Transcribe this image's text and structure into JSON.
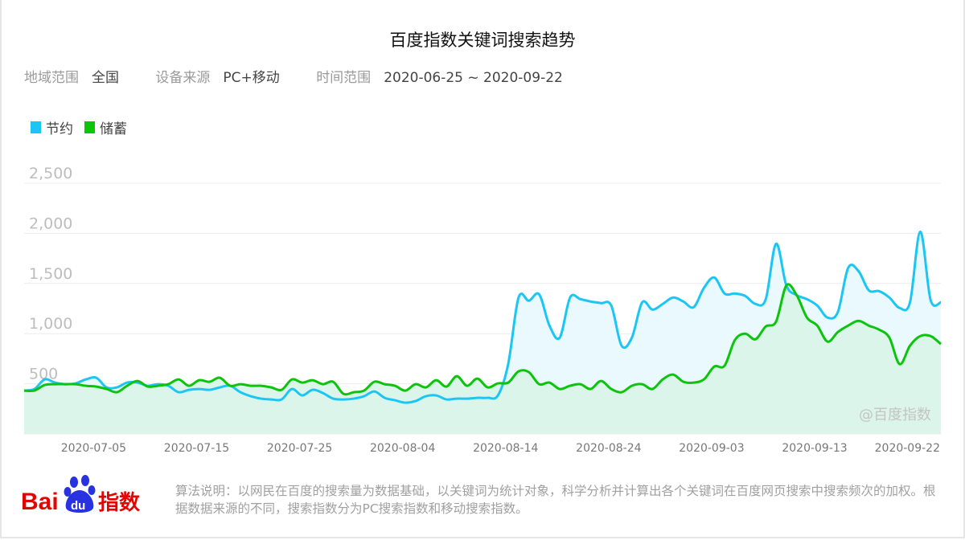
{
  "header": {
    "title": "百度指数关键词搜索趋势",
    "filters": [
      {
        "label": "地域范围",
        "value": "全国"
      },
      {
        "label": "设备来源",
        "value": "PC+移动"
      },
      {
        "label": "时间范围",
        "value": "2020-06-25 ~ 2020-09-22"
      }
    ]
  },
  "footer": {
    "logo_text": "Bai du 指数",
    "note": "算法说明：以网民在百度的搜索量为数据基础，以关键词为统计对象，科学分析并计算出各个关键词在百度网页搜索中搜索频次的加权。根据数据来源的不同，搜索指数分为PC搜索指数和移动搜索指数。"
  },
  "colors": {
    "series1": "#1cc6f4",
    "series2": "#0dc40d",
    "fill1": "#e9f9fd",
    "fill2": "#dcf5ea",
    "grid": "#ececec",
    "tick": "#aaaaaa",
    "logo_red": "#e10602",
    "logo_blue": "#2932e1"
  },
  "chart_data": {
    "type": "area",
    "title": "",
    "x_range": [
      "2020-06-25",
      "2020-09-22"
    ],
    "x_frequency": "daily",
    "x_ticks": [
      "2020-07-05",
      "2020-07-15",
      "2020-07-25",
      "2020-08-04",
      "2020-08-14",
      "2020-08-24",
      "2020-09-03",
      "2020-09-13",
      "2020-09-22"
    ],
    "ylim": [
      0,
      2500
    ],
    "y_ticks": [
      "2,500",
      "2,000",
      "1,500",
      "1,000",
      "500"
    ],
    "y_tick_values": [
      2500,
      2000,
      1500,
      1000,
      500
    ],
    "grid": true,
    "legend_position": "top-left",
    "watermark": "@百度指数",
    "series": [
      {
        "name": "节约",
        "values": [
          432,
          448,
          544,
          512,
          496,
          504,
          544,
          560,
          464,
          464,
          512,
          512,
          480,
          496,
          480,
          416,
          440,
          448,
          440,
          464,
          480,
          416,
          376,
          352,
          344,
          344,
          448,
          384,
          440,
          408,
          352,
          344,
          352,
          376,
          424,
          360,
          336,
          312,
          328,
          376,
          384,
          344,
          352,
          352,
          360,
          360,
          384,
          700,
          1360,
          1328,
          1392,
          1080,
          960,
          1360,
          1344,
          1320,
          1304,
          1280,
          880,
          960,
          1312,
          1240,
          1296,
          1360,
          1320,
          1264,
          1456,
          1560,
          1400,
          1400,
          1376,
          1296,
          1344,
          1896,
          1480,
          1384,
          1344,
          1280,
          1160,
          1216,
          1656,
          1624,
          1432,
          1424,
          1360,
          1256,
          1312,
          2016,
          1336,
          1312
        ]
      },
      {
        "name": "储蓄",
        "values": [
          432,
          432,
          488,
          496,
          496,
          496,
          480,
          472,
          448,
          416,
          480,
          528,
          472,
          480,
          496,
          544,
          480,
          536,
          520,
          560,
          480,
          496,
          480,
          480,
          464,
          440,
          544,
          512,
          536,
          496,
          520,
          400,
          416,
          432,
          520,
          496,
          480,
          432,
          496,
          464,
          536,
          472,
          576,
          480,
          552,
          464,
          504,
          512,
          624,
          616,
          496,
          512,
          448,
          480,
          496,
          448,
          528,
          448,
          416,
          480,
          496,
          448,
          544,
          592,
          520,
          512,
          544,
          672,
          680,
          936,
          1000,
          944,
          1072,
          1120,
          1480,
          1384,
          1160,
          1080,
          920,
          1016,
          1080,
          1128,
          1080,
          1040,
          960,
          696,
          880,
          976,
          976,
          896
        ]
      }
    ]
  }
}
